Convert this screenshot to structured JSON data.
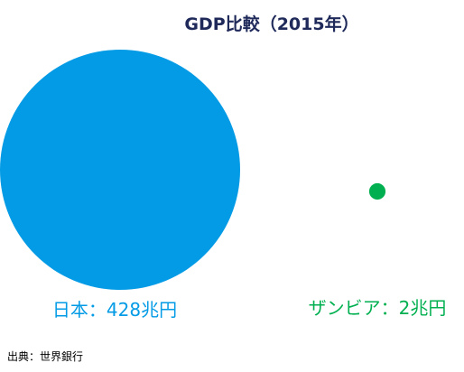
{
  "chart_data": {
    "type": "bubble",
    "title": "GDP比較（2015年）",
    "unit": "兆円",
    "items": [
      {
        "name": "日本",
        "value": 428,
        "label": "日本：428兆円",
        "color": "#039be5"
      },
      {
        "name": "ザンビア",
        "value": 2,
        "label": "ザンビア：2兆円",
        "color": "#00b050"
      }
    ],
    "source": "出典：世界銀行",
    "colors": {
      "title": "#1f2a5a",
      "source": "#000000"
    }
  }
}
